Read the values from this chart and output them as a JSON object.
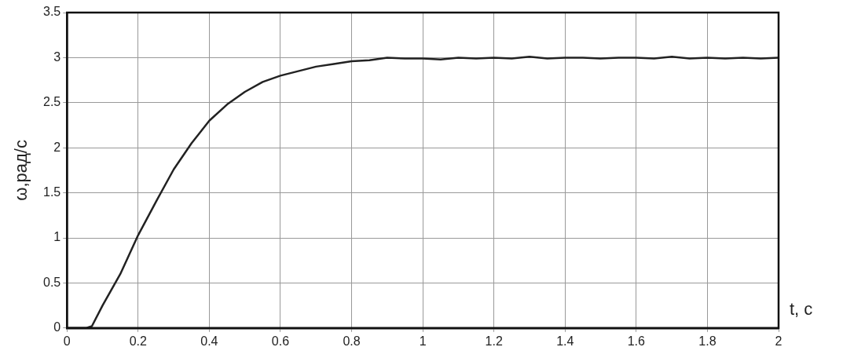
{
  "chart_data": {
    "type": "line",
    "xlabel": "t, с",
    "ylabel": "ω,рад/с",
    "x": [
      0,
      0.055,
      0.07,
      0.1,
      0.15,
      0.2,
      0.25,
      0.3,
      0.35,
      0.4,
      0.45,
      0.5,
      0.55,
      0.6,
      0.65,
      0.7,
      0.75,
      0.8,
      0.85,
      0.9,
      0.95,
      1.0,
      1.05,
      1.1,
      1.15,
      1.2,
      1.25,
      1.3,
      1.35,
      1.4,
      1.45,
      1.5,
      1.55,
      1.6,
      1.65,
      1.7,
      1.75,
      1.8,
      1.85,
      1.9,
      1.95,
      2.0
    ],
    "series": [
      {
        "color": "#222222",
        "values": [
          0,
          0,
          0.02,
          0.25,
          0.6,
          1.03,
          1.4,
          1.76,
          2.05,
          2.3,
          2.48,
          2.62,
          2.73,
          2.8,
          2.85,
          2.9,
          2.93,
          2.96,
          2.97,
          3.0,
          2.99,
          2.99,
          2.98,
          3.0,
          2.99,
          3.0,
          2.99,
          3.01,
          2.99,
          3.0,
          3.0,
          2.99,
          3.0,
          3.0,
          2.99,
          3.01,
          2.99,
          3.0,
          2.99,
          3.0,
          2.99,
          3.0
        ]
      }
    ],
    "xlim": [
      0,
      2
    ],
    "xticks": [
      0,
      0.2,
      0.4,
      0.6,
      0.8,
      1,
      1.2,
      1.4,
      1.6,
      1.8,
      2
    ],
    "ylim": [
      0,
      3.5
    ],
    "yticks": [
      0,
      0.5,
      1,
      1.5,
      2,
      2.5,
      3,
      3.5
    ],
    "grid": true,
    "legend": false,
    "marker": "none",
    "line_style": "solid"
  }
}
